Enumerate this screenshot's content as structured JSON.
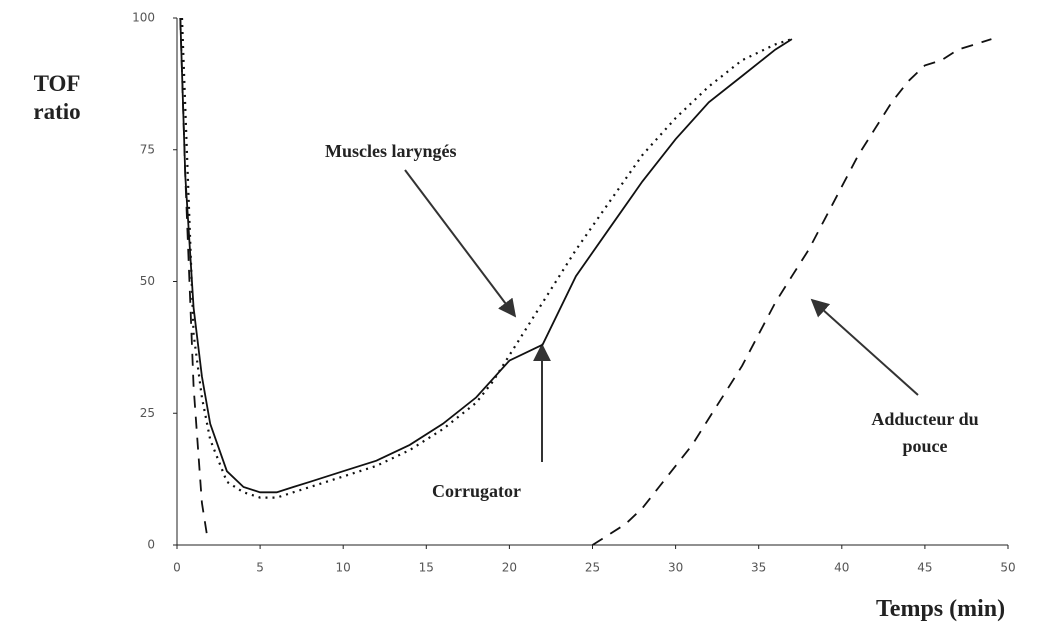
{
  "chart_data": {
    "type": "line",
    "xlabel": "Temps (min)",
    "ylabel": "TOF ratio",
    "xlim": [
      0,
      50
    ],
    "xticks": [
      0,
      5,
      10,
      15,
      20,
      25,
      30,
      35,
      40,
      45,
      50
    ],
    "ylim": [
      0,
      100
    ],
    "yticks": [
      0,
      25,
      50,
      75,
      100
    ],
    "series": [
      {
        "name": "Corrugator",
        "color": "#111111",
        "style": "solid",
        "x": [
          0.2,
          0.5,
          1,
          1.5,
          2,
          3,
          4,
          5,
          6,
          7,
          8,
          10,
          12,
          14,
          16,
          18,
          20,
          22,
          24,
          26,
          28,
          30,
          32,
          34,
          36,
          37
        ],
        "values": [
          100,
          70,
          45,
          32,
          23,
          14,
          11,
          10,
          10,
          11,
          12,
          14,
          16,
          19,
          23,
          28,
          35,
          38,
          51,
          60,
          69,
          77,
          84,
          89,
          94,
          96
        ]
      },
      {
        "name": "Muscles laryngés",
        "color": "#111111",
        "style": "dotted",
        "x": [
          0.3,
          1,
          1.5,
          2,
          3,
          4,
          5,
          6,
          7,
          8,
          10,
          12,
          14,
          16,
          18,
          19,
          20,
          22,
          24,
          26,
          28,
          30,
          32,
          34,
          36,
          37
        ],
        "values": [
          100,
          40,
          28,
          20,
          12,
          10,
          9,
          9,
          10,
          11,
          13,
          15,
          18,
          22,
          27,
          31,
          36,
          46,
          56,
          65,
          74,
          81,
          87,
          92,
          95,
          96
        ]
      },
      {
        "name": "Adducteur du pouce",
        "color": "#111111",
        "style": "dashed",
        "x": [
          0.2,
          0.5,
          1,
          1.5,
          1.8,
          null,
          25,
          26,
          27,
          28,
          29,
          30,
          31,
          32,
          33,
          34,
          35,
          36,
          37,
          38,
          39,
          40,
          41,
          42,
          43,
          44,
          45,
          46,
          47,
          48,
          49
        ],
        "values": [
          100,
          70,
          30,
          8,
          2,
          null,
          0,
          2,
          4,
          7,
          11,
          15,
          19,
          24,
          29,
          34,
          40,
          46,
          51,
          56,
          62,
          68,
          74,
          79,
          84,
          88,
          91,
          92,
          94,
          95,
          96
        ]
      }
    ]
  }
}
